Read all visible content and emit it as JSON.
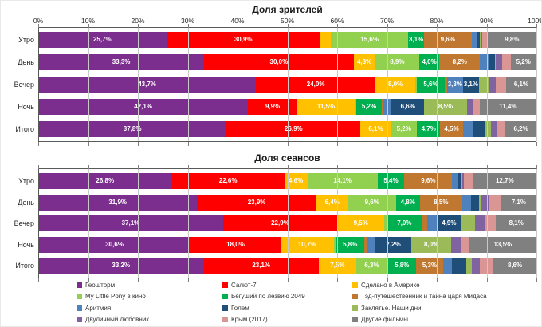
{
  "layout_colors": {
    "grid": "#C9C9C9",
    "axis": "#595959",
    "bar_label": "#FFFFFF"
  },
  "label_threshold": 3,
  "chart_data": [
    {
      "type": "bar",
      "orientation": "horizontal",
      "stacked": true,
      "units": "percent",
      "title": "Доля зрителей",
      "xlim": [
        0,
        100
      ],
      "x_ticks": [
        "0%",
        "10%",
        "20%",
        "30%",
        "40%",
        "50%",
        "60%",
        "70%",
        "80%",
        "90%",
        "100%"
      ],
      "x_tick_labels_visible": true,
      "grid": true,
      "categories": [
        "Утро",
        "День",
        "Вечер",
        "Ночь",
        "Итого"
      ],
      "series": [
        {
          "name": "Геошторм",
          "color": "#7B2E8E",
          "values": [
            25.7,
            33.3,
            43.7,
            42.1,
            37.8
          ]
        },
        {
          "name": "Салют-7",
          "color": "#FF0000",
          "values": [
            30.9,
            30.0,
            24.0,
            9.9,
            26.9
          ]
        },
        {
          "name": "Сделано в Америке",
          "color": "#FFC000",
          "values": [
            2.1,
            4.3,
            8.0,
            11.5,
            6.1
          ]
        },
        {
          "name": "My Little Pony в кино",
          "color": "#92D050",
          "values": [
            15.6,
            8.9,
            0.3,
            0.3,
            5.2
          ]
        },
        {
          "name": "Бегущий по лезвию 2049",
          "color": "#00B050",
          "values": [
            3.1,
            4.0,
            5.6,
            5.2,
            4.7
          ]
        },
        {
          "name": "Тэд-путешественник и тайна царя Мидаса",
          "color": "#C0772F",
          "values": [
            9.6,
            8.2,
            0.4,
            0.2,
            4.5
          ]
        },
        {
          "name": "Аритмия",
          "color": "#4F81BD",
          "values": [
            1.2,
            1.7,
            3.3,
            1.7,
            2.2
          ]
        },
        {
          "name": "Голем",
          "color": "#1F4E79",
          "values": [
            0.4,
            1.2,
            3.1,
            6.6,
            2.2
          ]
        },
        {
          "name": "Заклятье. Наши дни",
          "color": "#9BBB59",
          "values": [
            0.2,
            0.3,
            2.0,
            8.5,
            1.2
          ]
        },
        {
          "name": "Двуличный любовник",
          "color": "#8064A2",
          "values": [
            0.3,
            1.2,
            1.5,
            1.4,
            1.4
          ]
        },
        {
          "name": "Крым (2017)",
          "color": "#D99694",
          "values": [
            1.1,
            1.7,
            2.0,
            1.2,
            1.6
          ]
        },
        {
          "name": "Другие фильмы",
          "color": "#808080",
          "values": [
            9.8,
            5.2,
            6.1,
            11.4,
            6.2
          ]
        }
      ]
    },
    {
      "type": "bar",
      "orientation": "horizontal",
      "stacked": true,
      "units": "percent",
      "title": "Доля сеансов",
      "xlim": [
        0,
        100
      ],
      "x_ticks": [
        "0%",
        "10%",
        "20%",
        "30%",
        "40%",
        "50%",
        "60%",
        "70%",
        "80%",
        "90%",
        "100%"
      ],
      "x_tick_labels_visible": false,
      "grid": true,
      "categories": [
        "Утро",
        "День",
        "Вечер",
        "Ночь",
        "Итого"
      ],
      "series": [
        {
          "name": "Геошторм",
          "color": "#7B2E8E",
          "values": [
            26.8,
            31.9,
            37.1,
            30.6,
            33.2
          ]
        },
        {
          "name": "Салют-7",
          "color": "#FF0000",
          "values": [
            22.6,
            23.9,
            22.9,
            18.0,
            23.1
          ]
        },
        {
          "name": "Сделано в Америке",
          "color": "#FFC000",
          "values": [
            4.6,
            6.4,
            9.5,
            10.7,
            7.5
          ]
        },
        {
          "name": "My Little Pony в кино",
          "color": "#92D050",
          "values": [
            14.1,
            9.6,
            0.5,
            0.4,
            6.3
          ]
        },
        {
          "name": "Бегущий по лезвию 2049",
          "color": "#00B050",
          "values": [
            5.4,
            4.8,
            7.0,
            5.8,
            5.8
          ]
        },
        {
          "name": "Тэд-путешественник и тайна царя Мидаса",
          "color": "#C0772F",
          "values": [
            9.6,
            8.5,
            1.1,
            0.4,
            5.3
          ]
        },
        {
          "name": "Аритмия",
          "color": "#4F81BD",
          "values": [
            1.0,
            1.7,
            1.9,
            1.8,
            1.8
          ]
        },
        {
          "name": "Голем",
          "color": "#1F4E79",
          "values": [
            0.8,
            1.7,
            4.9,
            7.2,
            2.9
          ]
        },
        {
          "name": "Заклятье. Наши дни",
          "color": "#9BBB59",
          "values": [
            0.2,
            0.5,
            2.8,
            8.0,
            1.2
          ]
        },
        {
          "name": "Двуличный любовник",
          "color": "#8064A2",
          "values": [
            0.4,
            1.6,
            1.9,
            2.0,
            1.5
          ]
        },
        {
          "name": "Крым (2017)",
          "color": "#D99694",
          "values": [
            1.8,
            2.3,
            2.3,
            1.6,
            2.8
          ]
        },
        {
          "name": "Другие фильмы",
          "color": "#808080",
          "values": [
            12.7,
            7.1,
            8.1,
            13.5,
            8.6
          ]
        }
      ]
    }
  ],
  "legend": {
    "items": [
      "Геошторм",
      "Салют-7",
      "Сделано в Америке",
      "My Little Pony в кино",
      "Бегущий по лезвию 2049",
      "Тэд-путешественник и тайна царя Мидаса",
      "Аритмия",
      "Голем",
      "Заклятье. Наши дни",
      "Двуличный любовник",
      "Крым (2017)",
      "Другие фильмы"
    ]
  }
}
